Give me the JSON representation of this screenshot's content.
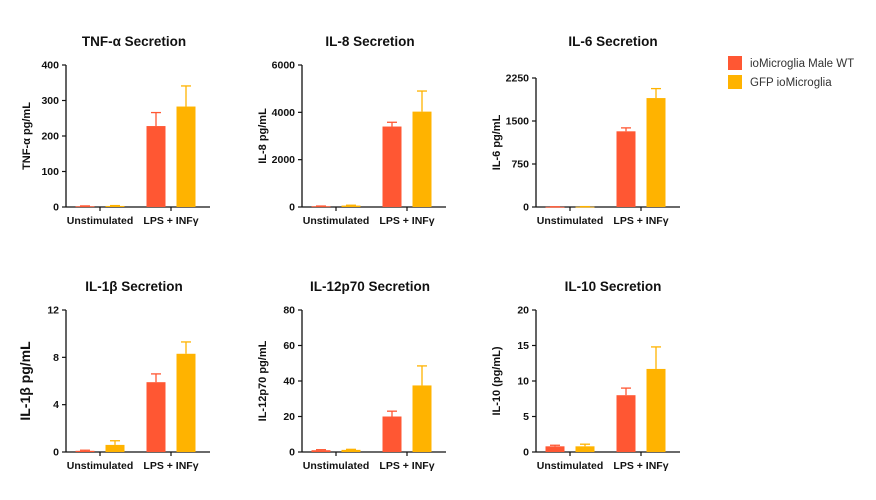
{
  "colors": {
    "wt": "#FF5733",
    "gfp": "#FFB300",
    "axis": "#111111"
  },
  "legend": [
    {
      "label": "ioMicroglia Male WT",
      "color": "#FF5733"
    },
    {
      "label": "GFP ioMicroglia",
      "color": "#FFB300"
    }
  ],
  "chart_data": [
    {
      "type": "bar",
      "title": "TNF-α Secretion",
      "ylabel": "TNF-α pg/mL",
      "ylim": [
        0,
        400
      ],
      "yticks": [
        "0",
        "100",
        "200",
        "300",
        "400"
      ],
      "categories": [
        "Unstimulated",
        "LPS + INFγ"
      ],
      "series": [
        {
          "name": "ioMicroglia Male WT",
          "values": [
            2,
            228
          ],
          "errors": [
            1,
            38
          ]
        },
        {
          "name": "GFP ioMicroglia",
          "values": [
            3,
            283
          ],
          "errors": [
            1,
            58
          ]
        }
      ]
    },
    {
      "type": "bar",
      "title": "IL-8 Secretion",
      "ylabel": "IL-8 pg/mL",
      "ylim": [
        0,
        6000
      ],
      "yticks": [
        "0",
        "2000",
        "4000",
        "6000"
      ],
      "categories": [
        "Unstimulated",
        "LPS + INFγ"
      ],
      "series": [
        {
          "name": "ioMicroglia Male WT",
          "values": [
            30,
            3400
          ],
          "errors": [
            10,
            180
          ]
        },
        {
          "name": "GFP ioMicroglia",
          "values": [
            60,
            4030
          ],
          "errors": [
            15,
            870
          ]
        }
      ]
    },
    {
      "type": "bar",
      "title": "IL-6 Secretion",
      "ylabel": "IL-6 pg/mL",
      "ylim": [
        0,
        2250
      ],
      "yticks": [
        "0",
        "750",
        "1500",
        "2250"
      ],
      "categories": [
        "Unstimulated",
        "LPS + INFγ"
      ],
      "series": [
        {
          "name": "ioMicroglia Male WT",
          "values": [
            3,
            1320
          ],
          "errors": [
            1,
            60
          ]
        },
        {
          "name": "GFP ioMicroglia",
          "values": [
            5,
            1900
          ],
          "errors": [
            2,
            165
          ]
        }
      ]
    },
    {
      "type": "bar",
      "title": "IL-1β Secretion",
      "ylabel": "IL-1β pg/mL",
      "ylabel_big": true,
      "ylim": [
        0,
        12
      ],
      "yticks": [
        "0",
        "4",
        "8",
        "12"
      ],
      "categories": [
        "Unstimulated",
        "LPS + INFγ"
      ],
      "series": [
        {
          "name": "ioMicroglia Male WT",
          "values": [
            0.1,
            5.9
          ],
          "errors": [
            0.05,
            0.7
          ]
        },
        {
          "name": "GFP ioMicroglia",
          "values": [
            0.6,
            8.3
          ],
          "errors": [
            0.35,
            1.0
          ]
        }
      ]
    },
    {
      "type": "bar",
      "title": "IL-12p70 Secretion",
      "ylabel": "IL-12p70 pg/mL",
      "ylim": [
        0,
        80
      ],
      "yticks": [
        "0",
        "20",
        "40",
        "60",
        "80"
      ],
      "categories": [
        "Unstimulated",
        "LPS + INFγ"
      ],
      "series": [
        {
          "name": "ioMicroglia Male WT",
          "values": [
            1,
            20
          ],
          "errors": [
            0.3,
            3
          ]
        },
        {
          "name": "GFP ioMicroglia",
          "values": [
            1.2,
            37.5
          ],
          "errors": [
            0.3,
            11
          ]
        }
      ]
    },
    {
      "type": "bar",
      "title": "IL-10 Secretion",
      "ylabel": "IL-10 (pg/mL)",
      "ylim": [
        0,
        20
      ],
      "yticks": [
        "0",
        "5",
        "10",
        "15",
        "20"
      ],
      "categories": [
        "Unstimulated",
        "LPS + INFγ"
      ],
      "series": [
        {
          "name": "ioMicroglia Male WT",
          "values": [
            0.8,
            8
          ],
          "errors": [
            0.15,
            1.0
          ]
        },
        {
          "name": "GFP ioMicroglia",
          "values": [
            0.8,
            11.7
          ],
          "errors": [
            0.3,
            3.1
          ]
        }
      ]
    }
  ]
}
